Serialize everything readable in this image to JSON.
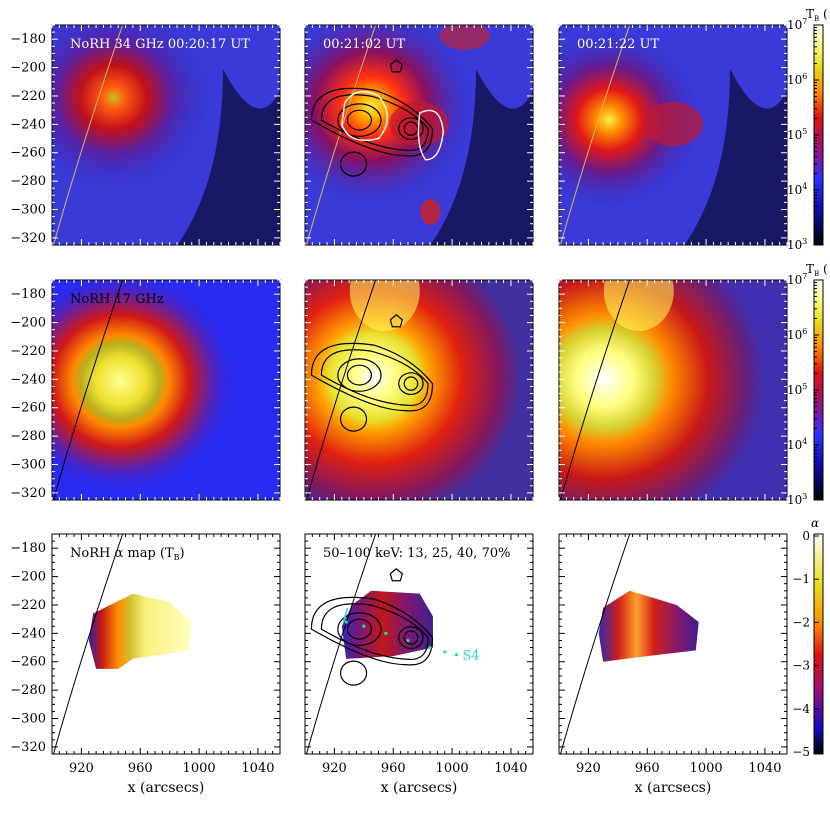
{
  "figure": {
    "rows": [
      {
        "quantity": "T_B",
        "colorbar": {
          "title": "T",
          "title_sub": "B",
          "title_suffix": " (",
          "scale": "log",
          "ticks": [
            "10",
            "10",
            "10",
            "10",
            "10"
          ],
          "tick_exponents": [
            "3",
            "4",
            "5",
            "6",
            "7"
          ]
        },
        "panels": [
          {
            "label": "NoRH 34 GHz 00:20:17 UT",
            "label_color": "#ffffff",
            "image": "norh-34ghz-brightness-map",
            "contours_black": false,
            "contours_white": false
          },
          {
            "label": "00:21:02 UT",
            "label_color": "#ffffff",
            "image": "norh-34ghz-brightness-map",
            "contours_black": true,
            "contours_white": true
          },
          {
            "label": "00:21:22 UT",
            "label_color": "#ffffff",
            "image": "norh-34ghz-brightness-map",
            "contours_black": false,
            "contours_white": false
          }
        ]
      },
      {
        "quantity": "T_B",
        "colorbar": {
          "title": "T",
          "title_sub": "B",
          "title_suffix": " (",
          "scale": "log",
          "ticks": [
            "10",
            "10",
            "10",
            "10",
            "10"
          ],
          "tick_exponents": [
            "3",
            "4",
            "5",
            "6",
            "7"
          ]
        },
        "panels": [
          {
            "label": "NoRH 17 GHz",
            "label_color": "#000000",
            "image": "norh-17ghz-brightness-map",
            "contours_black": false
          },
          {
            "label": "",
            "label_color": "#000000",
            "image": "norh-17ghz-brightness-map",
            "contours_black": true
          },
          {
            "label": "",
            "label_color": "#000000",
            "image": "norh-17ghz-brightness-map",
            "contours_black": false
          }
        ]
      },
      {
        "quantity": "alpha",
        "colorbar": {
          "title": "α",
          "scale": "linear",
          "ticks": [
            "0",
            "−1",
            "−2",
            "−3",
            "−4",
            "−5"
          ]
        },
        "panels": [
          {
            "label": "NoRH α map (T",
            "label_sub": "B",
            "label_suffix": ")",
            "label_color": "#000000",
            "image": "spectral-index-map",
            "contours_black": false
          },
          {
            "label": "50–100 keV: 13, 25, 40, 70%",
            "label_color": "#000000",
            "image": "spectral-index-map",
            "contours_black": true,
            "slit_label": "S4",
            "slit_color": "#22ddbb"
          },
          {
            "label": "",
            "label_color": "#000000",
            "image": "spectral-index-map",
            "contours_black": false
          }
        ]
      }
    ],
    "axes": {
      "xlabel": "x (arcsecs)",
      "x_ticks": [
        "920",
        "960",
        "1000",
        "1040"
      ],
      "y_ticks": [
        "−180",
        "−200",
        "−220",
        "−240",
        "−260",
        "−280",
        "−300",
        "−320"
      ]
    }
  },
  "chart_data": [
    {
      "type": "heatmap",
      "title": "NoRH 34 GHz 00:20:17 UT",
      "xlabel": "",
      "ylabel": "",
      "xlim": [
        900,
        1055
      ],
      "ylim": [
        -325,
        -170
      ],
      "colorbar": {
        "scale": "log",
        "range": [
          1000,
          10000000
        ]
      },
      "times": [
        "00:20:17 UT",
        "00:21:02 UT",
        "00:21:22 UT"
      ],
      "peak_location": [
        937,
        -237
      ]
    },
    {
      "type": "heatmap",
      "title": "NoRH 17 GHz",
      "xlabel": "",
      "ylabel": "",
      "xlim": [
        900,
        1055
      ],
      "ylim": [
        -325,
        -170
      ],
      "colorbar": {
        "scale": "log",
        "range": [
          1000,
          10000000
        ]
      },
      "peak_location": [
        935,
        -240
      ]
    },
    {
      "type": "heatmap",
      "title": "NoRH α map (TB)",
      "xlabel": "x (arcsecs)",
      "ylabel": "",
      "xlim": [
        900,
        1055
      ],
      "ylim": [
        -325,
        -170
      ],
      "colorbar": {
        "scale": "linear",
        "range": [
          -5,
          0
        ]
      },
      "contour_levels_percent": [
        13,
        25,
        40,
        70
      ],
      "contour_energy": "50–100 keV"
    }
  ]
}
